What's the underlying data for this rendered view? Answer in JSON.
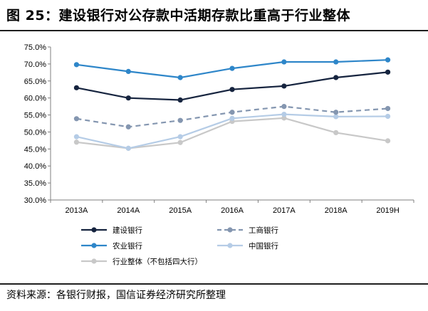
{
  "title": "图 25：建设银行对公存款中活期存款比重高于行业整体",
  "source": "资料来源：各银行财报，国信证券经济研究所整理",
  "chart_data": {
    "type": "line",
    "categories": [
      "2013A",
      "2014A",
      "2015A",
      "2016A",
      "2017A",
      "2018A",
      "2019H"
    ],
    "ylim": [
      30.0,
      75.0
    ],
    "ystep": 5.0,
    "ytick_labels": [
      "30.0%",
      "35.0%",
      "40.0%",
      "45.0%",
      "50.0%",
      "55.0%",
      "60.0%",
      "65.0%",
      "70.0%",
      "75.0%"
    ],
    "grid": false,
    "legend_position": "bottom",
    "series": [
      {
        "name": "建设银行",
        "color": "#16243f",
        "dashed": false,
        "values": [
          63.0,
          60.0,
          59.4,
          62.5,
          63.5,
          66.0,
          67.6
        ]
      },
      {
        "name": "工商银行",
        "color": "#8496b0",
        "dashed": true,
        "values": [
          53.9,
          51.5,
          53.4,
          55.8,
          57.5,
          55.8,
          56.9
        ]
      },
      {
        "name": "农业银行",
        "color": "#2e86c9",
        "dashed": false,
        "values": [
          69.8,
          67.8,
          66.0,
          68.7,
          70.6,
          70.6,
          71.2
        ]
      },
      {
        "name": "中国银行",
        "color": "#b5cce6",
        "dashed": false,
        "values": [
          48.6,
          45.2,
          48.6,
          54.0,
          55.2,
          54.5,
          54.6
        ]
      },
      {
        "name": "行业整体（不包括四大行）",
        "color": "#c8c8c8",
        "dashed": false,
        "values": [
          47.0,
          45.2,
          46.9,
          53.1,
          54.1,
          49.8,
          47.4
        ]
      }
    ]
  }
}
